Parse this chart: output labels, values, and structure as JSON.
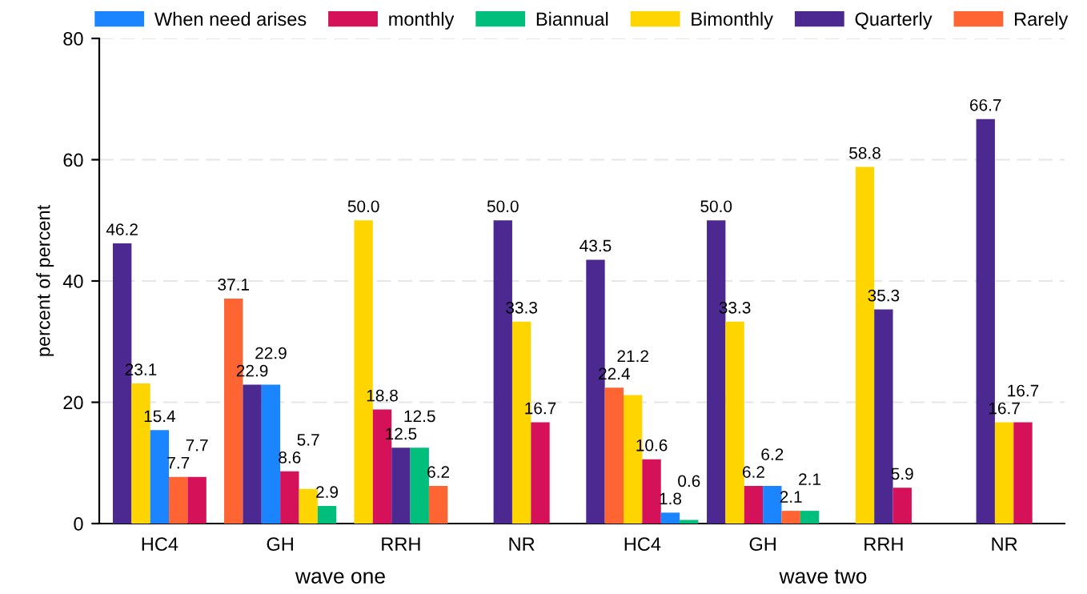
{
  "chart_data": {
    "type": "bar",
    "ylabel": "percent of percent",
    "categories": [
      "HC4",
      "GH",
      "RRH",
      "NR",
      "HC4",
      "GH",
      "RRH",
      "NR"
    ],
    "series": [
      {
        "name": "When need arises",
        "color": "#1a85ff",
        "values": [
          15.4,
          22.9,
          null,
          null,
          1.8,
          6.2,
          null,
          null
        ],
        "value_labels": [
          "15.4",
          "22.9",
          null,
          null,
          "1.8",
          "6.2",
          null,
          null
        ]
      },
      {
        "name": "monthly",
        "color": "#d41159",
        "values": [
          7.7,
          8.6,
          18.8,
          16.7,
          10.6,
          6.2,
          5.9,
          16.7
        ],
        "value_labels": [
          "7.7",
          "8.6",
          "18.8",
          "16.7",
          "10.6",
          "6.2",
          "5.9",
          "16.7"
        ]
      },
      {
        "name": "Biannual",
        "color": "#00bf7d",
        "values": [
          null,
          2.9,
          12.5,
          null,
          0.6,
          2.1,
          null,
          null
        ],
        "value_labels": [
          null,
          "2.9",
          "12.5",
          null,
          "0.6",
          "2.1",
          null,
          null
        ]
      },
      {
        "name": "Bimonthly",
        "color": "#ffd500",
        "values": [
          23.1,
          5.7,
          50.0,
          33.3,
          21.2,
          33.3,
          58.8,
          16.7
        ],
        "value_labels": [
          "23.1",
          "5.7",
          "50.0",
          "33.3",
          "21.2",
          "33.3",
          "58.8",
          "16.7"
        ]
      },
      {
        "name": "Quarterly",
        "color": "#4b2991",
        "values": [
          46.2,
          22.9,
          12.5,
          50.0,
          43.5,
          50.0,
          35.3,
          66.7
        ],
        "value_labels": [
          "46.2",
          "22.9",
          "12.5",
          "50.0",
          "43.5",
          "50.0",
          "35.3",
          "66.7"
        ]
      },
      {
        "name": "Rarely",
        "color": "#ff6433",
        "values": [
          7.7,
          37.1,
          6.2,
          null,
          22.4,
          2.1,
          null,
          null
        ],
        "value_labels": [
          "7.7",
          "37.1",
          "6.2",
          null,
          "22.4",
          "2.1",
          null,
          null
        ]
      }
    ],
    "annotations": [
      "wave one",
      "wave two"
    ],
    "ylim": [
      0,
      80
    ],
    "yticks": [
      0,
      20,
      40,
      60,
      80
    ],
    "grid": "y",
    "legend": "top"
  }
}
